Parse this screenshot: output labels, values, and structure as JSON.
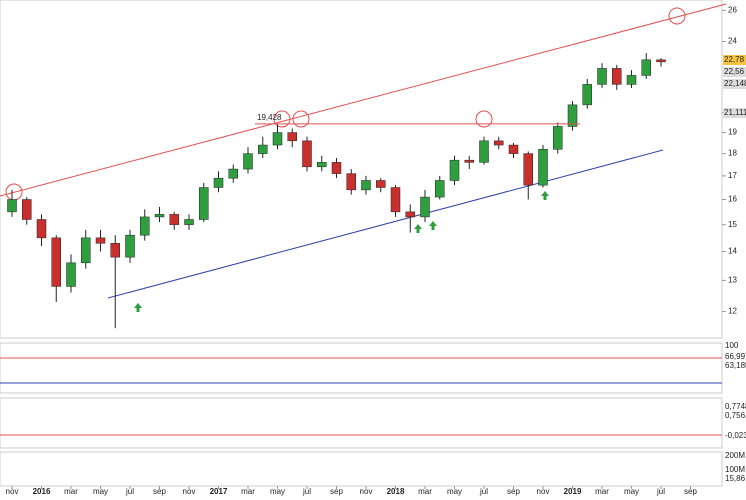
{
  "chart_data": {
    "type": "candlestick",
    "categories": [
      "nov",
      null,
      "2016",
      null,
      "mar",
      null,
      "may",
      null,
      "jul",
      null,
      "sep",
      null,
      "nov",
      null,
      "2017",
      null,
      "mar",
      null,
      "may",
      null,
      "jul",
      null,
      "sep",
      null,
      "nov",
      null,
      "2018",
      null,
      "mar",
      null,
      "may",
      null,
      "jul",
      null,
      "sep",
      null,
      "nov",
      null,
      "2019",
      null,
      "mar",
      null,
      "may",
      null,
      "jul",
      null,
      "sep"
    ],
    "open": [
      15.5,
      16.0,
      15.2,
      14.5,
      12.8,
      13.6,
      14.5,
      14.3,
      13.8,
      14.6,
      15.3,
      15.4,
      15.0,
      15.2,
      16.5,
      16.9,
      17.3,
      18.0,
      18.4,
      19.0,
      18.6,
      17.4,
      17.6,
      17.1,
      16.4,
      16.8,
      16.5,
      15.5,
      15.3,
      16.1,
      16.8,
      17.7,
      17.6,
      18.6,
      18.4,
      18.0,
      16.6,
      18.2,
      19.3,
      20.4,
      21.5,
      22.4,
      21.5,
      22.0,
      22.9,
      null,
      null
    ],
    "high": [
      16.4,
      16.1,
      15.4,
      14.6,
      13.9,
      14.8,
      14.8,
      14.6,
      14.8,
      15.6,
      15.7,
      15.5,
      15.4,
      16.7,
      17.2,
      17.5,
      18.3,
      18.8,
      19.4,
      19.2,
      18.8,
      17.9,
      17.8,
      17.3,
      17.0,
      16.9,
      16.6,
      15.8,
      16.4,
      17.0,
      17.9,
      17.9,
      18.8,
      18.8,
      18.5,
      18.1,
      18.4,
      19.5,
      20.6,
      21.8,
      22.7,
      22.6,
      22.3,
      23.3,
      23.0,
      null,
      null
    ],
    "low": [
      15.3,
      15.0,
      14.2,
      12.3,
      12.6,
      13.4,
      14.0,
      11.5,
      13.6,
      14.4,
      15.1,
      14.8,
      14.8,
      15.1,
      16.3,
      16.7,
      17.1,
      17.8,
      18.2,
      18.3,
      17.2,
      17.2,
      16.9,
      16.2,
      16.2,
      16.3,
      15.3,
      14.7,
      15.1,
      16.0,
      16.6,
      17.3,
      17.5,
      18.2,
      17.8,
      16.0,
      16.5,
      18.0,
      19.1,
      20.2,
      21.3,
      21.2,
      21.3,
      21.8,
      22.5,
      null,
      null
    ],
    "close": [
      16.0,
      15.2,
      14.5,
      12.8,
      13.6,
      14.5,
      14.3,
      13.8,
      14.6,
      15.3,
      15.4,
      15.0,
      15.2,
      16.5,
      16.9,
      17.3,
      18.0,
      18.4,
      19.0,
      18.6,
      17.4,
      17.6,
      17.1,
      16.4,
      16.8,
      16.5,
      15.5,
      15.3,
      16.1,
      16.8,
      17.7,
      17.6,
      18.6,
      18.4,
      18.0,
      16.6,
      18.2,
      19.3,
      20.4,
      21.5,
      22.4,
      21.5,
      22.0,
      22.9,
      22.78,
      null,
      null
    ],
    "up_color": "#2e9e3f",
    "down_color": "#c8302e",
    "ylim": [
      11.3,
      26.7
    ],
    "log_scale": true,
    "yticks": [
      12,
      13,
      14,
      15,
      16,
      17,
      18,
      19,
      20,
      24,
      26
    ],
    "level": {
      "value": 19.428,
      "label": "19,428"
    },
    "last_labels": [
      "22,78",
      "22,56",
      "22,148",
      "21,111"
    ],
    "panels": [
      {
        "labels": [
          "100",
          "66,997",
          "63,185"
        ]
      },
      {
        "labels": [
          "0,7748",
          "0,7561",
          "-0,023"
        ]
      },
      {
        "labels": [
          "200M",
          "100M",
          "15,86"
        ]
      }
    ]
  }
}
